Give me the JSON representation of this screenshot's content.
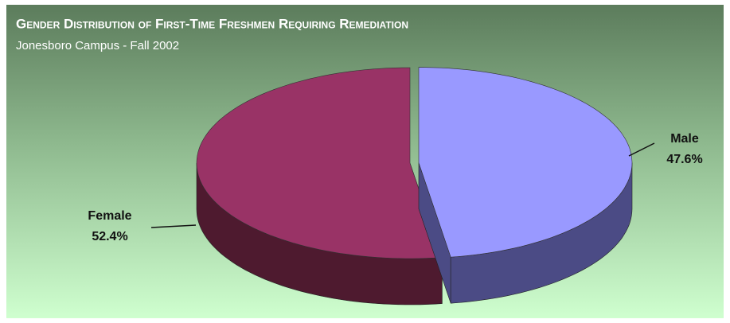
{
  "chart_data": {
    "type": "pie3d",
    "title": "Gender Distribution of First-Time Freshmen Requiring Remediation",
    "subtitle": "Jonesboro Campus - Fall 2002",
    "categories": [
      "Male",
      "Female"
    ],
    "values": [
      47.6,
      52.4
    ],
    "value_labels": [
      "47.6%",
      "52.4%"
    ],
    "colors": [
      "#9999ff",
      "#993366"
    ],
    "side_colors": [
      "#4b4b85",
      "#4e1a2f"
    ]
  }
}
